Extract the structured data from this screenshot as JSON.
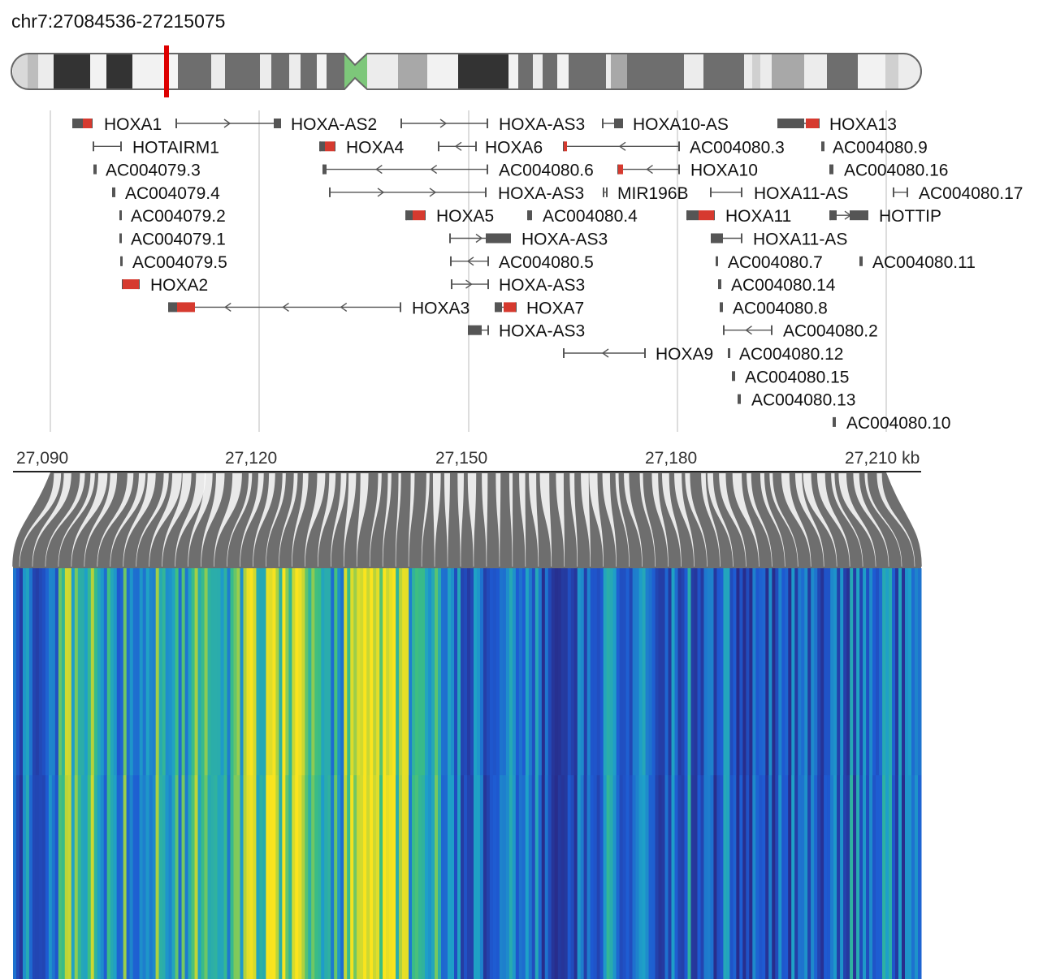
{
  "region": "chr7:27084536-27215075",
  "colors": {
    "exon_coding": "#d63a2f",
    "exon_noncoding": "#555555",
    "intron_line": "#555555",
    "centromere": "#7dc77a",
    "highlight": "#dd0000",
    "gridline": "#dddddd",
    "axis": "#222222",
    "fan": "#6e6e6e",
    "heat_low": "#2239a0",
    "heat_mid": "#1fa6b0",
    "heat_high": "#f8e71c"
  },
  "axis": {
    "tick_labels": [
      "27,090",
      "27,120",
      "27,150",
      "27,180",
      "27,210 kb"
    ]
  },
  "genes": [
    {
      "name": "HOXA1",
      "row": 0
    },
    {
      "name": "HOXA-AS2",
      "row": 0
    },
    {
      "name": "HOXA-AS3",
      "row": 0
    },
    {
      "name": "HOXA10-AS",
      "row": 0
    },
    {
      "name": "HOXA13",
      "row": 0
    },
    {
      "name": "HOTAIRM1",
      "row": 1
    },
    {
      "name": "HOXA4",
      "row": 1
    },
    {
      "name": "HOXA6",
      "row": 1
    },
    {
      "name": "AC004080.3",
      "row": 1
    },
    {
      "name": "AC004080.9",
      "row": 1
    },
    {
      "name": "AC004079.3",
      "row": 2
    },
    {
      "name": "AC004080.6",
      "row": 2
    },
    {
      "name": "HOXA10",
      "row": 2
    },
    {
      "name": "AC004080.16",
      "row": 2
    },
    {
      "name": "AC004079.4",
      "row": 3
    },
    {
      "name": "HOXA-AS3",
      "row": 3
    },
    {
      "name": "MIR196B",
      "row": 3
    },
    {
      "name": "HOXA11-AS",
      "row": 3
    },
    {
      "name": "AC004080.17",
      "row": 3
    },
    {
      "name": "AC004079.2",
      "row": 4
    },
    {
      "name": "HOXA5",
      "row": 4
    },
    {
      "name": "AC004080.4",
      "row": 4
    },
    {
      "name": "HOXA11",
      "row": 4
    },
    {
      "name": "HOTTIP",
      "row": 4
    },
    {
      "name": "AC004079.1",
      "row": 5
    },
    {
      "name": "HOXA-AS3",
      "row": 5
    },
    {
      "name": "HOXA11-AS",
      "row": 5
    },
    {
      "name": "AC004079.5",
      "row": 6
    },
    {
      "name": "AC004080.5",
      "row": 6
    },
    {
      "name": "AC004080.7",
      "row": 6
    },
    {
      "name": "AC004080.11",
      "row": 6
    },
    {
      "name": "HOXA2",
      "row": 7
    },
    {
      "name": "HOXA-AS3",
      "row": 7
    },
    {
      "name": "AC004080.14",
      "row": 7
    },
    {
      "name": "HOXA3",
      "row": 8
    },
    {
      "name": "HOXA7",
      "row": 8
    },
    {
      "name": "AC004080.8",
      "row": 8
    },
    {
      "name": "HOXA-AS3",
      "row": 9
    },
    {
      "name": "AC004080.2",
      "row": 9
    },
    {
      "name": "HOXA9",
      "row": 10
    },
    {
      "name": "AC004080.12",
      "row": 10
    },
    {
      "name": "AC004080.15",
      "row": 11
    },
    {
      "name": "AC004080.13",
      "row": 12
    },
    {
      "name": "AC004080.10",
      "row": 13
    }
  ]
}
